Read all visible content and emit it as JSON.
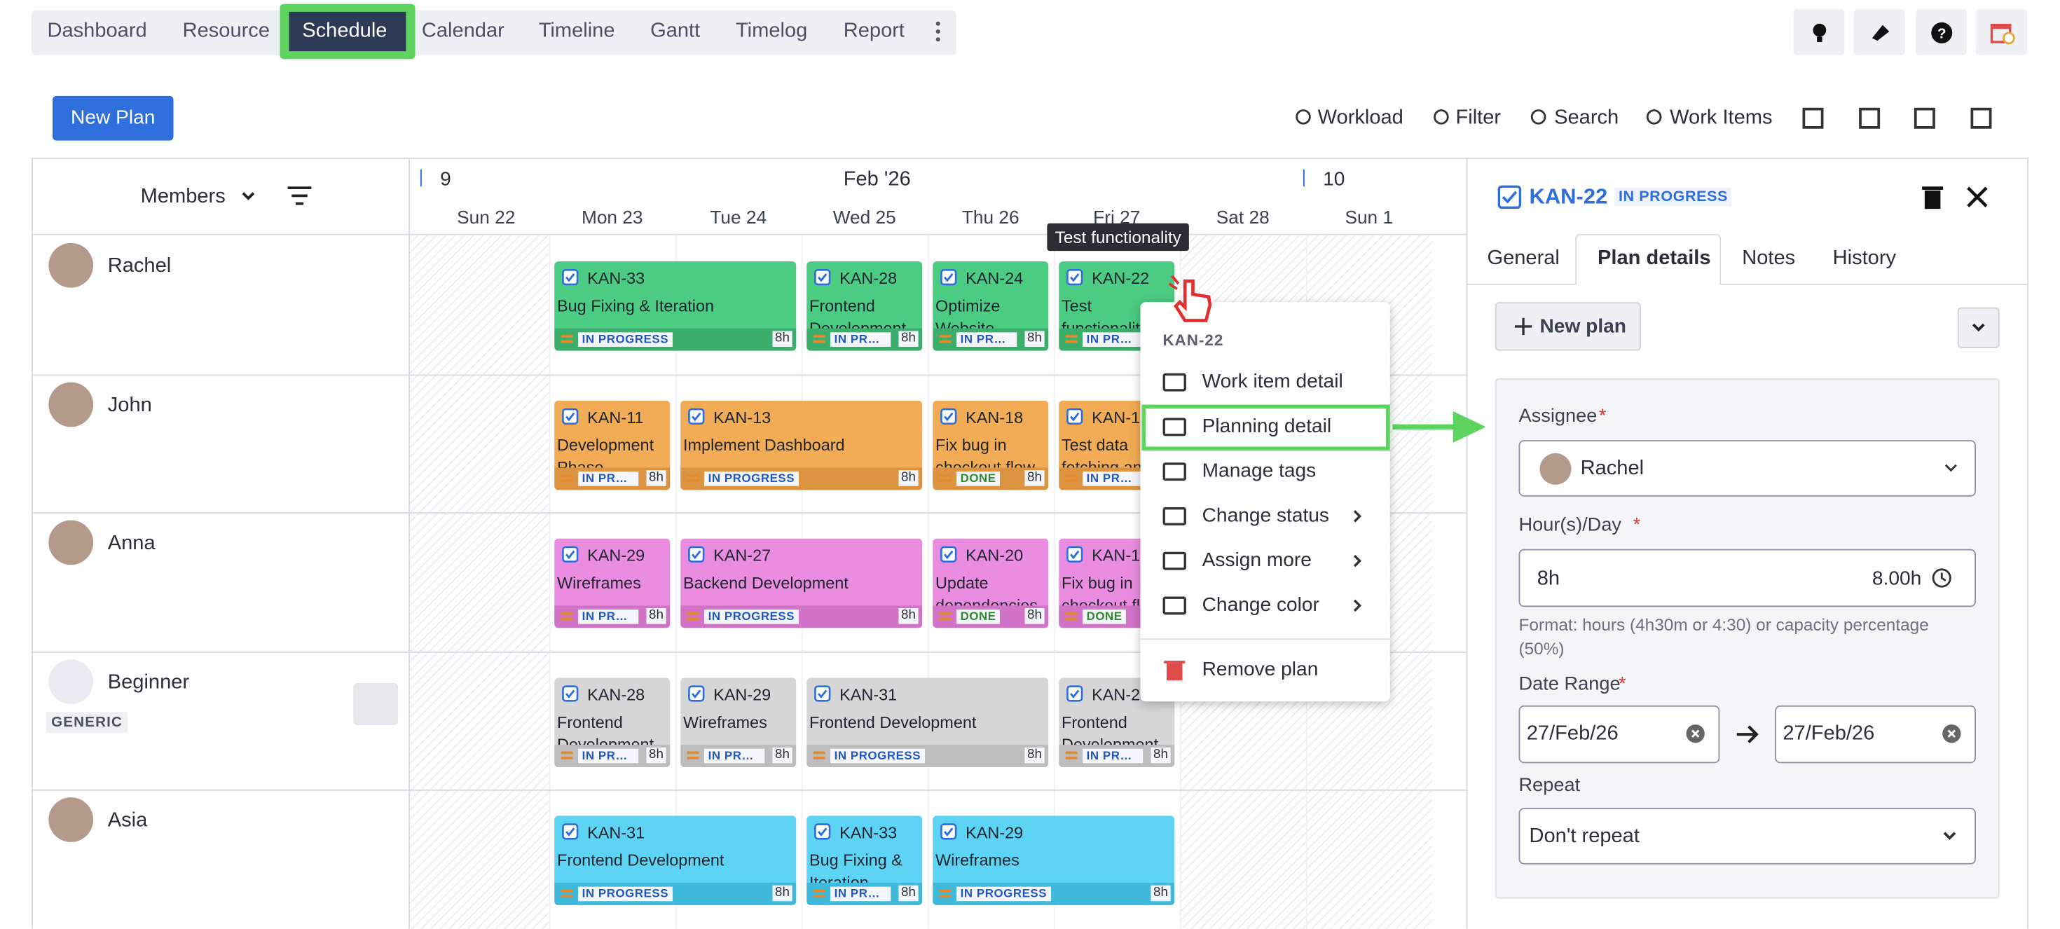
{
  "nav": {
    "tabs": [
      "Dashboard",
      "Resource",
      "Schedule",
      "Calendar",
      "Timeline",
      "Gantt",
      "Timelog",
      "Report"
    ]
  },
  "toolbar": {
    "new_plan": "New Plan",
    "tools": [
      "Workload",
      "Filter",
      "Search",
      "Work Items"
    ]
  },
  "schedule": {
    "members_label": "Members",
    "week_left": "9",
    "month": "Feb '26",
    "week_right": "10",
    "days": [
      "Sun 22",
      "Mon 23",
      "Tue 24",
      "Wed 25",
      "Thu 26",
      "Fri 27",
      "Sat 28",
      "Sun 1"
    ],
    "members": [
      {
        "name": "Rachel",
        "cards": [
          {
            "key": "KAN-33",
            "title": "Bug Fixing & Iteration",
            "status": "IN PROGRESS",
            "hours": "8h"
          },
          {
            "key": "KAN-28",
            "title": "Frontend Development",
            "status": "IN PROGRESS",
            "hours": "8h"
          },
          {
            "key": "KAN-24",
            "title": "Optimize Website",
            "status": "IN PROGRESS",
            "hours": "8h"
          },
          {
            "key": "KAN-22",
            "title": "Test functionality",
            "status": "IN PROGRESS",
            "hours": "8h"
          }
        ]
      },
      {
        "name": "John",
        "cards": [
          {
            "key": "KAN-11",
            "title": "Development Phase",
            "status": "IN PROGRESS",
            "hours": "8h"
          },
          {
            "key": "KAN-13",
            "title": "Implement Dashboard",
            "status": "IN PROGRESS",
            "hours": "8h"
          },
          {
            "key": "KAN-18",
            "title": "Fix bug in checkout flow",
            "status": "DONE",
            "hours": "8h"
          },
          {
            "key": "KAN-1",
            "title": "Test data fetching an",
            "status": "IN PROGRESS",
            "hours": "8h"
          }
        ]
      },
      {
        "name": "Anna",
        "cards": [
          {
            "key": "KAN-29",
            "title": "Wireframes",
            "status": "IN PROGRESS",
            "hours": "8h"
          },
          {
            "key": "KAN-27",
            "title": "Backend Development",
            "status": "IN PROGRESS",
            "hours": "8h"
          },
          {
            "key": "KAN-20",
            "title": "Update dependencies",
            "status": "DONE",
            "hours": "8h"
          },
          {
            "key": "KAN-1",
            "title": "Fix bug in checkout fl",
            "status": "DONE",
            "hours": "8h"
          }
        ]
      },
      {
        "name": "Beginner",
        "tag": "GENERIC",
        "cards": [
          {
            "key": "KAN-28",
            "title": "Frontend Development",
            "status": "IN PROGRESS",
            "hours": "8h"
          },
          {
            "key": "KAN-29",
            "title": "Wireframes",
            "status": "IN PROGRESS",
            "hours": "8h"
          },
          {
            "key": "KAN-31",
            "title": "Frontend Development",
            "status": "IN PROGRESS",
            "hours": "8h"
          },
          {
            "key": "KAN-2",
            "title": "Frontend Development",
            "status": "IN PROGRESS",
            "hours": "8h"
          }
        ]
      },
      {
        "name": "Asia",
        "cards": [
          {
            "key": "KAN-31",
            "title": "Frontend Development",
            "status": "IN PROGRESS",
            "hours": "8h"
          },
          {
            "key": "KAN-33",
            "title": "Bug Fixing & Iteration",
            "status": "IN PROGRESS",
            "hours": "8h"
          },
          {
            "key": "KAN-29",
            "title": "Wireframes",
            "status": "IN PROGRESS",
            "hours": "8h"
          }
        ]
      }
    ]
  },
  "tooltip": "Test functionality",
  "context_menu": {
    "title": "KAN-22",
    "items": [
      "Work item detail",
      "Planning detail",
      "Manage tags",
      "Change status",
      "Assign more",
      "Change color",
      "Remove plan"
    ]
  },
  "panel": {
    "key": "KAN-22",
    "status": "IN PROGRESS",
    "tabs": [
      "General",
      "Plan details",
      "Notes",
      "History"
    ],
    "new_plan": "New plan",
    "required_mark": "*",
    "assignee_label": "Assignee",
    "assignee": "Rachel",
    "hours_label": "Hour(s)/Day",
    "hours_value": "8h",
    "hours_total": "8.00h",
    "hours_hint": "Format: hours (4h30m or 4:30) or capacity percentage (50%)",
    "date_label": "Date Range",
    "date_start": "27/Feb/26",
    "date_end": "27/Feb/26",
    "repeat_label": "Repeat",
    "repeat_value": "Don't repeat"
  }
}
